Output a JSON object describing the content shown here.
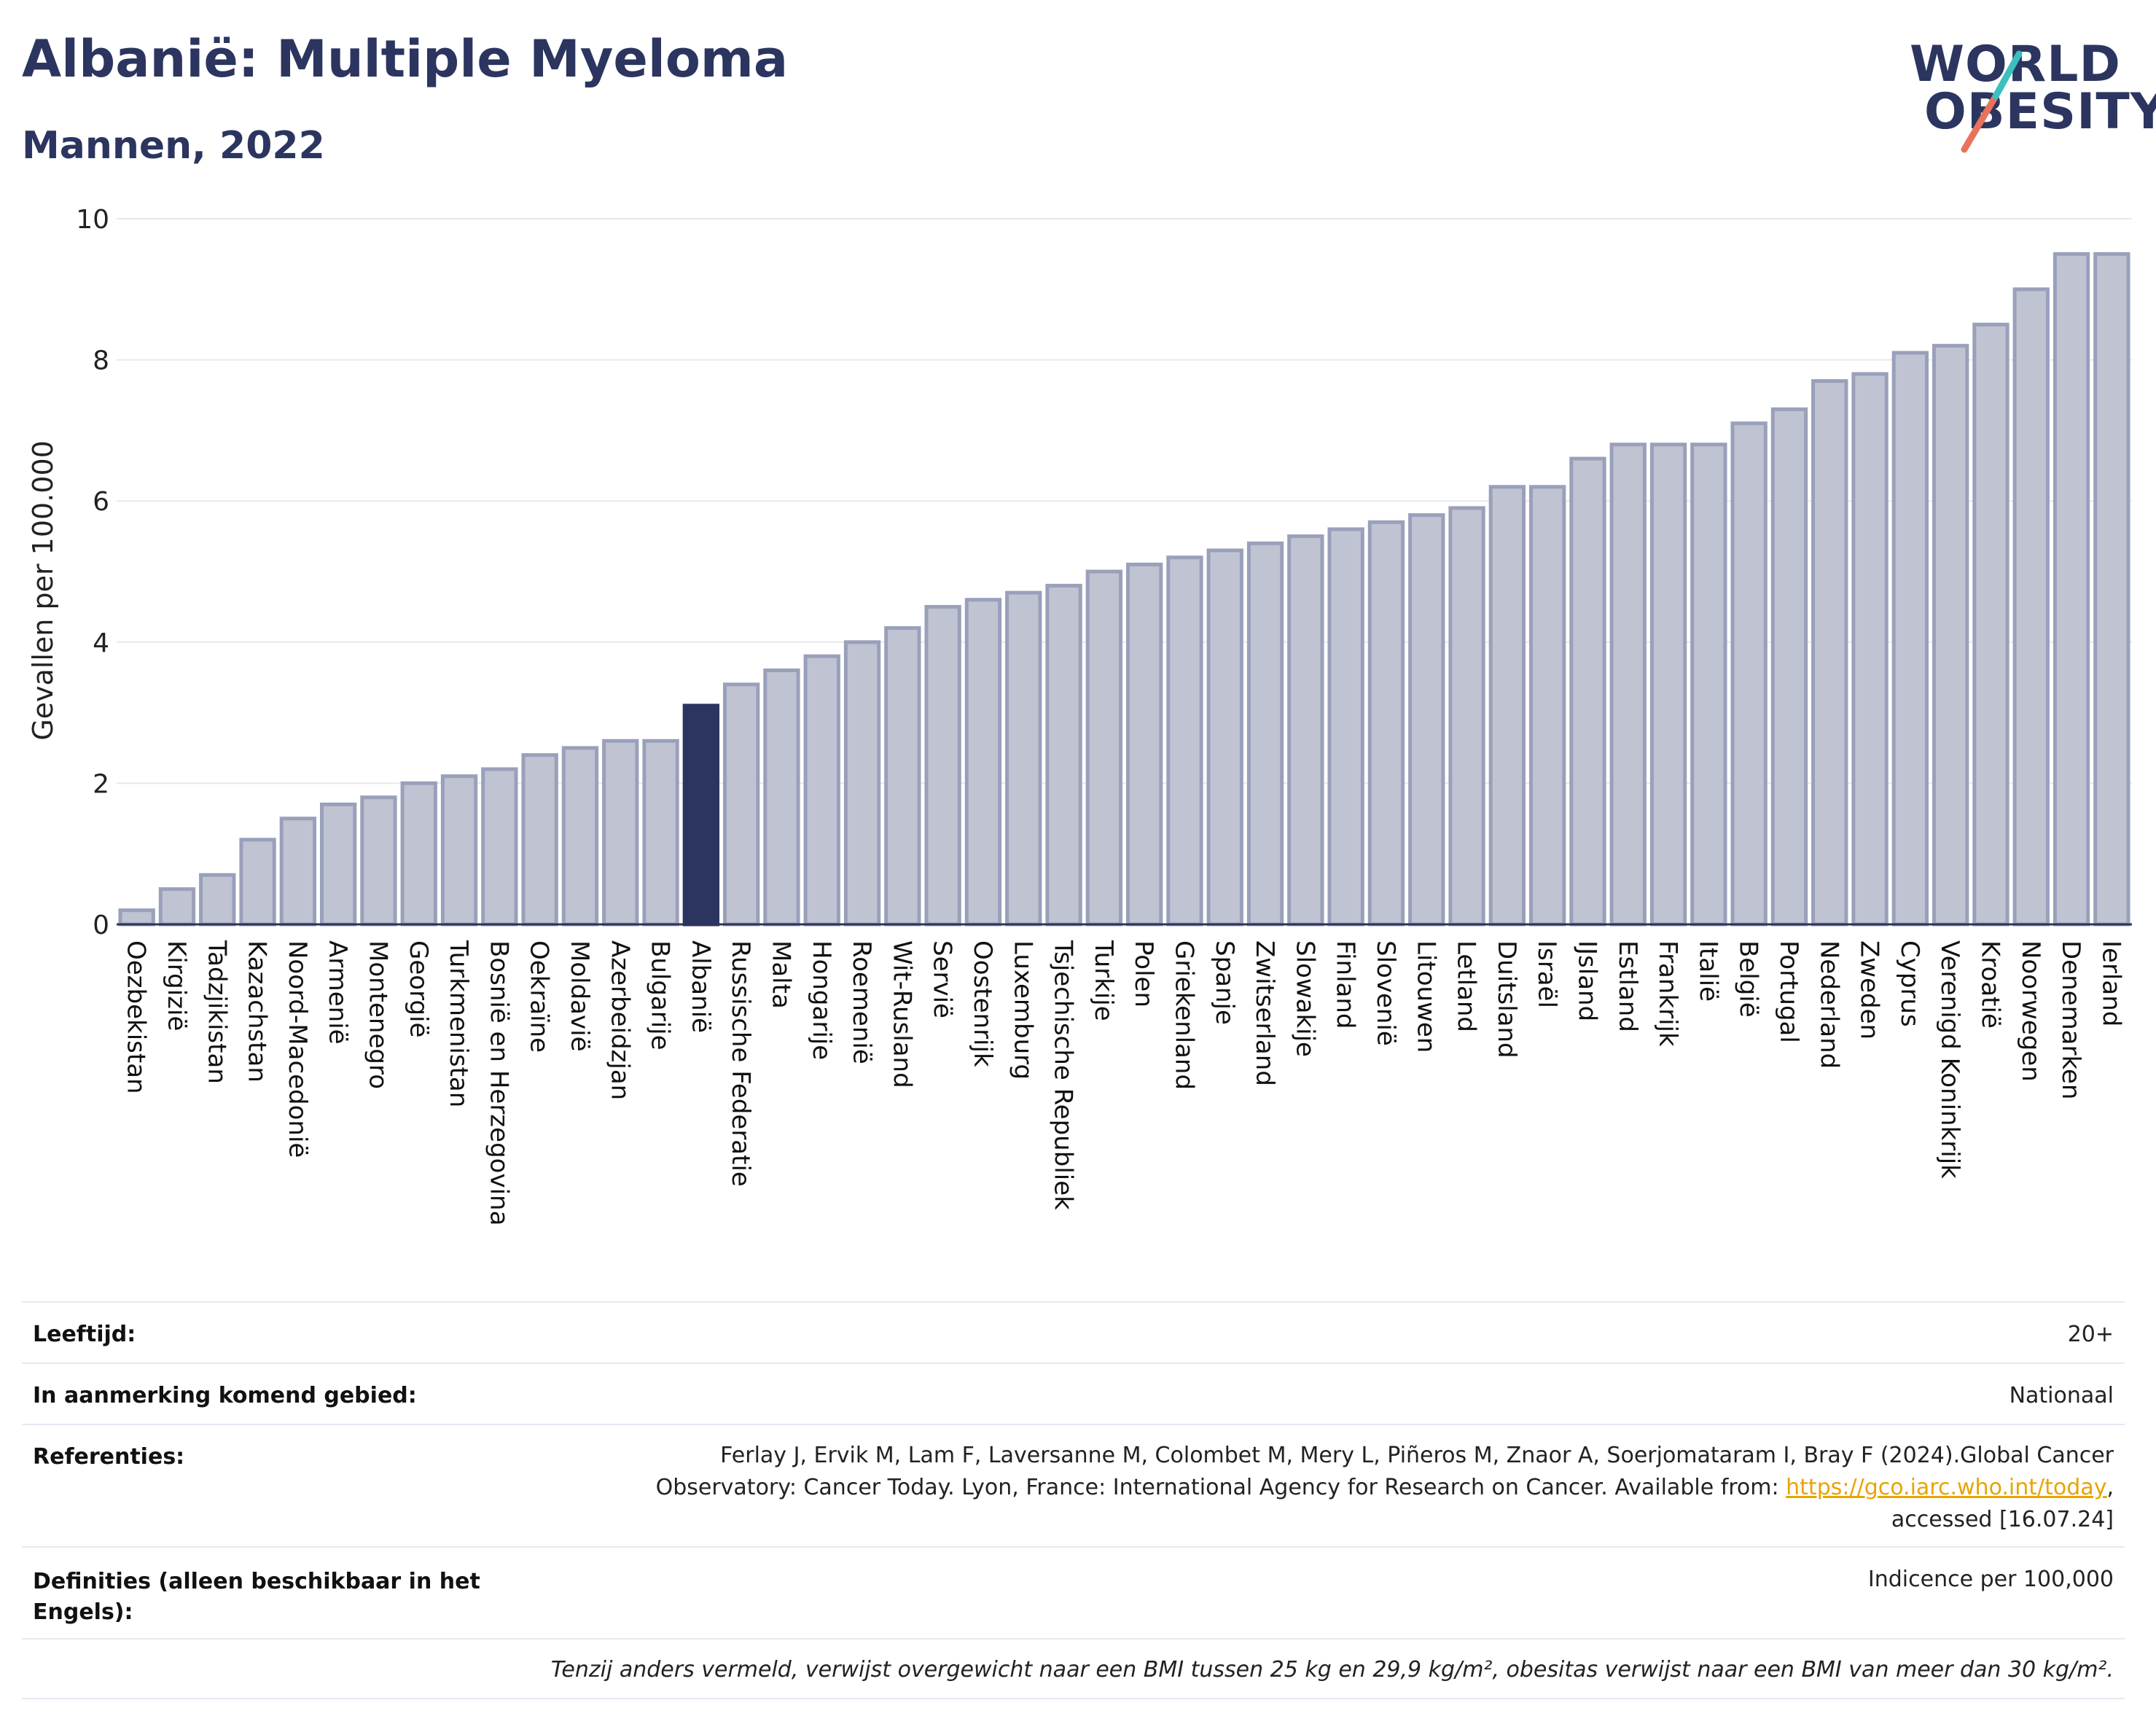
{
  "header": {
    "title": "Albanië: Multiple Myeloma",
    "subtitle": "Mannen, 2022"
  },
  "logo": {
    "line1": "WORLD",
    "line2": "OBESITY",
    "colors": {
      "text": "#2b355f",
      "teal": "#3bbfbf",
      "coral": "#e8735a"
    }
  },
  "colors": {
    "bar_default": "#bfc3d2",
    "bar_stroke": "#9aa0ba",
    "bar_highlight": "#2b355f",
    "grid": "#e6e8ee",
    "axis": "#2b355f"
  },
  "chart_data": {
    "type": "bar",
    "title": "",
    "xlabel": "",
    "ylabel": "Gevallen per 100.000",
    "ylim": [
      0,
      10
    ],
    "yticks": [
      0,
      2,
      4,
      6,
      8,
      10
    ],
    "grid": true,
    "highlight": "Albanië",
    "categories": [
      "Oezbekistan",
      "Kirgizië",
      "Tadzjikistan",
      "Kazachstan",
      "Noord-Macedonië",
      "Armenië",
      "Montenegro",
      "Georgië",
      "Turkmenistan",
      "Bosnië en Herzegovina",
      "Oekraïne",
      "Moldavië",
      "Azerbeidzjan",
      "Bulgarije",
      "Albanië",
      "Russische Federatie",
      "Malta",
      "Hongarije",
      "Roemenië",
      "Wit-Rusland",
      "Servië",
      "Oostenrijk",
      "Luxemburg",
      "Tsjechische Republiek",
      "Turkije",
      "Polen",
      "Griekenland",
      "Spanje",
      "Zwitserland",
      "Slowakije",
      "Finland",
      "Slovenië",
      "Litouwen",
      "Letland",
      "Duitsland",
      "Israël",
      "IJsland",
      "Estland",
      "Frankrijk",
      "Italië",
      "België",
      "Portugal",
      "Nederland",
      "Zweden",
      "Cyprus",
      "Verenigd Koninkrijk",
      "Kroatië",
      "Noorwegen",
      "Denemarken",
      "Ierland"
    ],
    "values": [
      0.2,
      0.5,
      0.7,
      1.2,
      1.5,
      1.7,
      1.8,
      2.0,
      2.1,
      2.2,
      2.4,
      2.5,
      2.6,
      2.6,
      3.1,
      3.4,
      3.6,
      3.8,
      4.0,
      4.2,
      4.5,
      4.6,
      4.7,
      4.8,
      5.0,
      5.1,
      5.2,
      5.3,
      5.4,
      5.5,
      5.6,
      5.7,
      5.8,
      5.9,
      6.2,
      6.2,
      6.6,
      6.8,
      6.8,
      6.8,
      7.1,
      7.3,
      7.7,
      7.8,
      8.1,
      8.2,
      8.5,
      9.0,
      9.5,
      9.5
    ]
  },
  "info": {
    "rows": [
      {
        "label": "Leeftijd:",
        "value": "20+"
      },
      {
        "label": "In aanmerking komend gebied:",
        "value": "Nationaal"
      }
    ],
    "references": {
      "label": "Referenties:",
      "line1": "Ferlay J, Ervik M, Lam F, Laversanne M, Colombet M, Mery L, Piñeros M, Znaor A, Soerjomataram I, Bray F (2024).Global Cancer",
      "line2_prefix": "Observatory: Cancer Today. Lyon, France: International Agency for Research on Cancer. Available from: ",
      "link": "https://gco.iarc.who.int/today",
      "line2_suffix": ",",
      "line3": "accessed [16.07.24]"
    },
    "definitions": {
      "label_line1": "Definities (alleen beschikbaar in het",
      "label_line2": "Engels):",
      "value": "Indicence per 100,000"
    },
    "note": "Tenzij anders vermeld, verwijst overgewicht naar een BMI tussen 25 kg en 29,9 kg/m², obesitas verwijst naar een BMI van meer dan 30 kg/m²."
  }
}
